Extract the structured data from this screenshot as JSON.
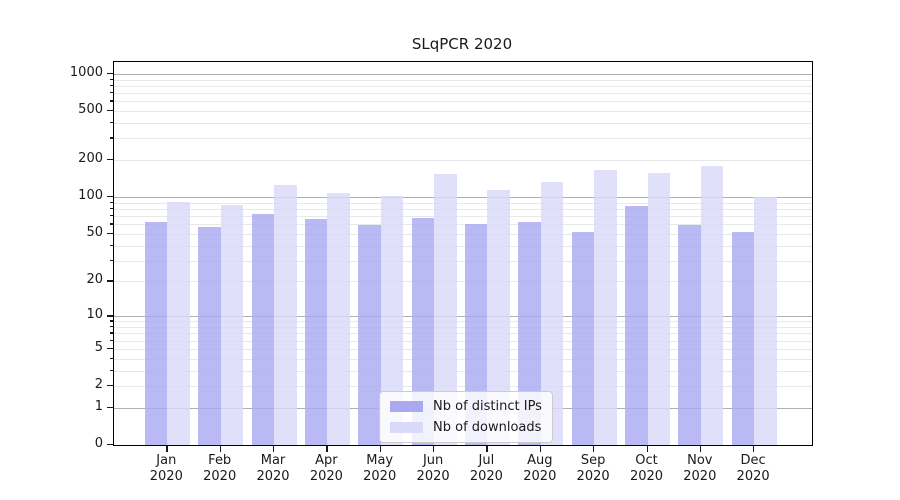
{
  "chart_data": {
    "type": "bar",
    "title": "SLqPCR 2020",
    "year": "2020",
    "categories": [
      "Jan 2020",
      "Feb 2020",
      "Mar 2020",
      "Apr 2020",
      "May 2020",
      "Jun 2020",
      "Jul 2020",
      "Aug 2020",
      "Sep 2020",
      "Oct 2020",
      "Nov 2020",
      "Dec 2020"
    ],
    "months": [
      "Jan",
      "Feb",
      "Mar",
      "Apr",
      "May",
      "Jun",
      "Jul",
      "Aug",
      "Sep",
      "Oct",
      "Nov",
      "Dec"
    ],
    "series": [
      {
        "name": "Nb of distinct IPs",
        "color": "#a9a9f1",
        "values": [
          63,
          57,
          73,
          66,
          59,
          68,
          60,
          62,
          52,
          84,
          59,
          52
        ]
      },
      {
        "name": "Nb of downloads",
        "color": "#d9d9f9",
        "values": [
          92,
          87,
          126,
          108,
          103,
          155,
          115,
          134,
          167,
          156,
          180,
          100
        ]
      }
    ],
    "yscale": "log1p",
    "yticks": [
      0,
      1,
      2,
      5,
      10,
      20,
      50,
      100,
      200,
      500,
      1000
    ],
    "ylim": [
      0,
      1250
    ],
    "xlabel": "",
    "ylabel": "",
    "grid": true,
    "legend_position": "lower-center",
    "colors": {
      "major_grid": "#b0b0b0",
      "minor_grid": "#e8e8e8",
      "spine": "#000000",
      "text": "#1a1a1a",
      "legend_border": "#cccccc"
    }
  }
}
